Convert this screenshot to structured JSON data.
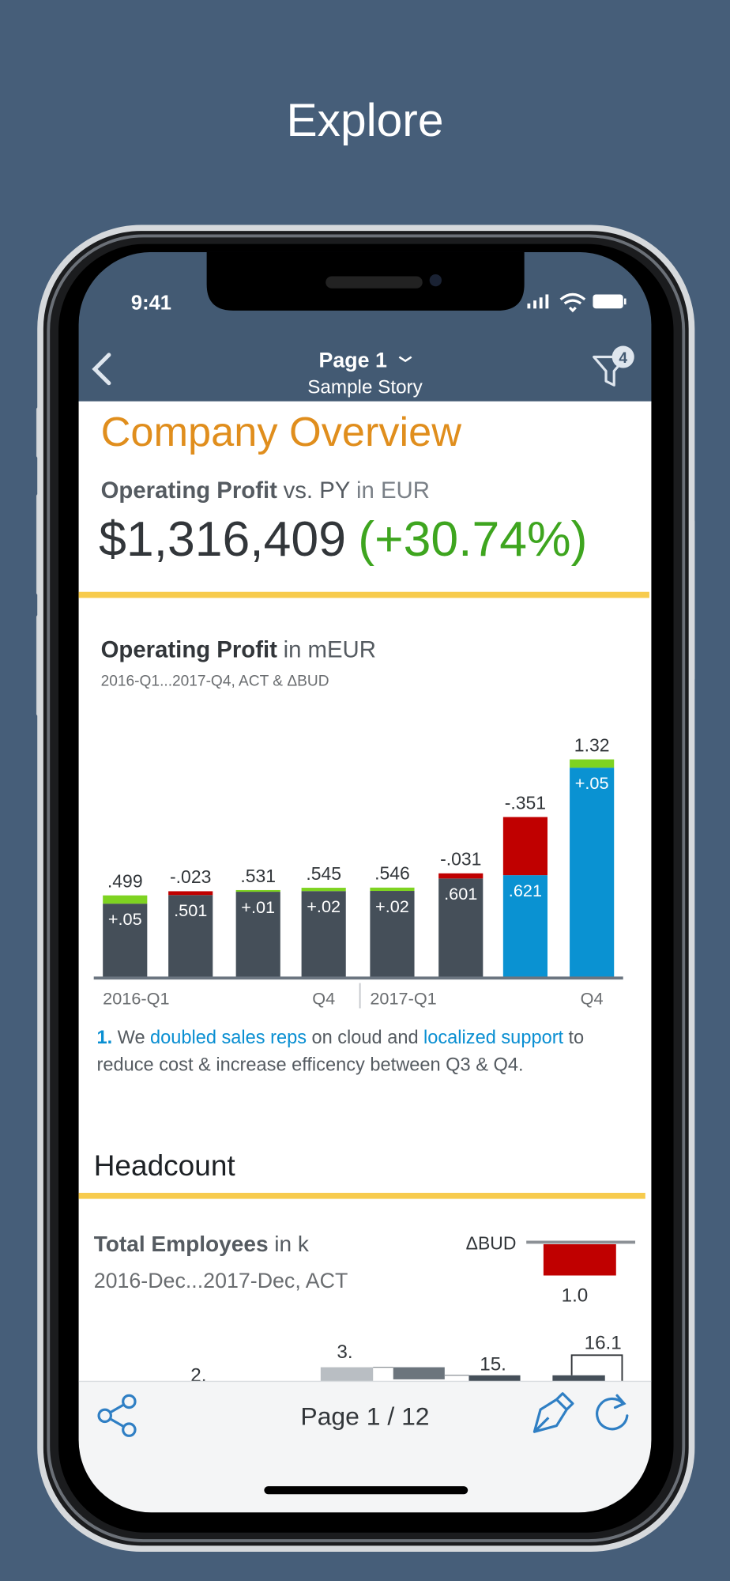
{
  "header": {
    "title": "Explore"
  },
  "status_bar": {
    "time": "9:41"
  },
  "nav": {
    "page": "Page 1",
    "story": "Sample Story",
    "filter_count": "4"
  },
  "overview": {
    "title": "Company Overview",
    "kpi_label": "Operating Profit",
    "kpi_compare": "vs. PY",
    "kpi_unit": "in EUR",
    "kpi_value": "$1,316,409",
    "kpi_change": "(+30.74%)"
  },
  "chart_data": {
    "type": "bar",
    "title": "Operating Profit",
    "unit": "in mEUR",
    "subtitle": "2016-Q1...2017-Q4, ACT & ΔBUD",
    "categories": [
      "2016-Q1",
      null,
      null,
      "Q4",
      "2017-Q1",
      null,
      null,
      "Q4"
    ],
    "bars": [
      {
        "base": 0.449,
        "delta": 0.05,
        "top_label": ".499",
        "inner_label": "+.05",
        "base_color": "#454f59"
      },
      {
        "base": 0.501,
        "delta": -0.023,
        "top_label": "-.023",
        "inner_label": ".501",
        "base_color": "#454f59"
      },
      {
        "base": 0.521,
        "delta": 0.01,
        "top_label": ".531",
        "inner_label": "+.01",
        "base_color": "#454f59"
      },
      {
        "base": 0.525,
        "delta": 0.02,
        "top_label": ".545",
        "inner_label": "+.02",
        "base_color": "#454f59"
      },
      {
        "base": 0.526,
        "delta": 0.02,
        "top_label": ".546",
        "inner_label": "+.02",
        "base_color": "#454f59"
      },
      {
        "base": 0.601,
        "delta": -0.031,
        "top_label": "-.031",
        "inner_label": ".601",
        "base_color": "#454f59"
      },
      {
        "base": 0.621,
        "delta": -0.351,
        "top_label": "-.351",
        "inner_label": ".621",
        "base_color": "#0a92d2"
      },
      {
        "base": 1.27,
        "delta": 0.05,
        "top_label": "1.32",
        "inner_label": "+.05",
        "base_color": "#0a92d2"
      }
    ],
    "positive_color": "#7ed321",
    "negative_color": "#c00000",
    "ylim": [
      0,
      1.4
    ],
    "comment": {
      "lines": [
        [
          {
            "text": "1.",
            "highlight": true
          },
          {
            "text": "We",
            "highlight": false
          },
          {
            "text": "doubled sales reps",
            "highlight": true
          },
          {
            "text": "on cloud and",
            "highlight": false
          },
          {
            "text": "localized support",
            "highlight": true
          },
          {
            "text": "to",
            "highlight": false
          }
        ],
        [
          {
            "text": "reduce cost & increase efficency between Q3 & Q4.",
            "highlight": false
          }
        ]
      ]
    }
  },
  "headcount": {
    "title": "Headcount",
    "kpi_label": "Total Employees",
    "kpi_unit": "in k",
    "period": "2016-Dec...2017-Dec, ACT",
    "delta_label": "ΔBUD",
    "delta_value": "1.0",
    "partial_labels": [
      "2.",
      "3.",
      "15.",
      "16.1"
    ]
  },
  "toolbar": {
    "page_indicator": "Page 1 / 12"
  }
}
